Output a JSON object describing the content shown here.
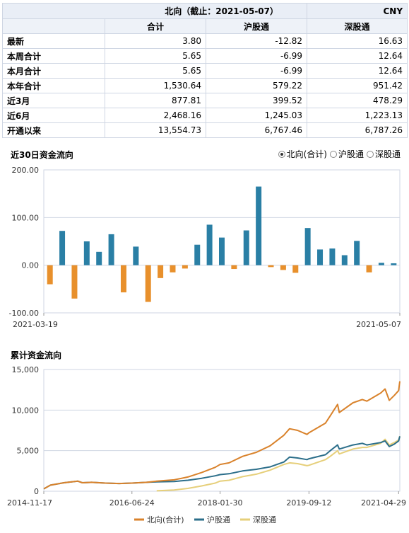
{
  "table": {
    "title": "北向（截止：2021-05-07）",
    "currency": "CNY",
    "columns": [
      "",
      "合计",
      "沪股通",
      "深股通"
    ],
    "rows": [
      {
        "label": "最新",
        "total": "3.80",
        "sh": "-12.82",
        "sz": "16.63"
      },
      {
        "label": "本周合计",
        "total": "5.65",
        "sh": "-6.99",
        "sz": "12.64"
      },
      {
        "label": "本月合计",
        "total": "5.65",
        "sh": "-6.99",
        "sz": "12.64"
      },
      {
        "label": "本年合计",
        "total": "1,530.64",
        "sh": "579.22",
        "sz": "951.42"
      },
      {
        "label": "近3月",
        "total": "877.81",
        "sh": "399.52",
        "sz": "478.29"
      },
      {
        "label": "近6月",
        "total": "2,468.16",
        "sh": "1,245.03",
        "sz": "1,223.13"
      },
      {
        "label": "开通以来",
        "total": "13,554.73",
        "sh": "6,767.46",
        "sz": "6,787.26"
      }
    ]
  },
  "radio": {
    "options": [
      "北向(合计)",
      "沪股通",
      "深股通"
    ],
    "selected": 0
  },
  "colors": {
    "positive": "#2a7fa5",
    "negative": "#e8902c",
    "total_line": "#d9822b",
    "sh_line": "#2b6e8a",
    "sz_line": "#e6cf7a",
    "grid": "#cfd6e3"
  },
  "chart_data": [
    {
      "type": "bar",
      "title": "近30日资金流向",
      "ylim": [
        -100,
        200
      ],
      "yticks": [
        "200.00",
        "100.00",
        "0.00",
        "-100.00"
      ],
      "ytick_values": [
        200,
        100,
        0,
        -100
      ],
      "xtick_labels": [
        "2021-03-19",
        "2021-05-07"
      ],
      "values": [
        -40,
        72,
        -70,
        50,
        28,
        65,
        -57,
        39,
        -77,
        -27,
        -15,
        -7,
        43,
        85,
        58,
        -8,
        73,
        165,
        -4,
        -10,
        -16,
        78,
        33,
        35,
        21,
        51,
        -15,
        5,
        4
      ],
      "grid": true
    },
    {
      "type": "line",
      "title": "累计资金流向",
      "ylim": [
        0,
        15000
      ],
      "yticks": [
        "15,000",
        "10,000",
        "5,000",
        "0"
      ],
      "ytick_values": [
        15000,
        10000,
        5000,
        0
      ],
      "xtick_labels": [
        "2014-11-17",
        "2016-06-24",
        "2018-01-30",
        "2019-09-12",
        "2021-04-29"
      ],
      "series": [
        {
          "name": "北向(合计)",
          "x": [
            "2014-11-17",
            "2014-12-31",
            "2015-03-31",
            "2015-06-30",
            "2015-07-31",
            "2015-09-30",
            "2015-12-31",
            "2016-03-31",
            "2016-06-24",
            "2016-09-30",
            "2016-12-05",
            "2017-03-31",
            "2017-06-30",
            "2017-09-30",
            "2017-12-29",
            "2018-01-30",
            "2018-03-31",
            "2018-06-29",
            "2018-09-28",
            "2018-12-28",
            "2019-03-29",
            "2019-05-06",
            "2019-06-28",
            "2019-08-30",
            "2019-09-12",
            "2019-12-31",
            "2020-01-31",
            "2020-03-20",
            "2020-03-31",
            "2020-06-30",
            "2020-08-31",
            "2020-09-30",
            "2020-12-31",
            "2021-01-29",
            "2021-02-26",
            "2021-03-31",
            "2021-04-29",
            "2021-05-07"
          ],
          "y": [
            300,
            750,
            1050,
            1250,
            1050,
            1100,
            1000,
            950,
            1000,
            1100,
            1250,
            1400,
            1750,
            2300,
            2950,
            3300,
            3500,
            4300,
            4800,
            5600,
            6900,
            7700,
            7500,
            7000,
            7200,
            8400,
            9300,
            10700,
            9700,
            10900,
            11300,
            11100,
            12100,
            12600,
            11200,
            11800,
            12400,
            13554
          ]
        },
        {
          "name": "沪股通",
          "x": [
            "2014-11-17",
            "2014-12-31",
            "2015-03-31",
            "2015-06-30",
            "2015-07-31",
            "2015-09-30",
            "2015-12-31",
            "2016-03-31",
            "2016-06-24",
            "2016-09-30",
            "2016-12-05",
            "2017-03-31",
            "2017-06-30",
            "2017-09-30",
            "2017-12-29",
            "2018-01-30",
            "2018-03-31",
            "2018-06-29",
            "2018-09-28",
            "2018-12-28",
            "2019-03-29",
            "2019-05-06",
            "2019-06-28",
            "2019-08-30",
            "2019-09-12",
            "2019-12-31",
            "2020-01-31",
            "2020-03-20",
            "2020-03-31",
            "2020-06-30",
            "2020-08-31",
            "2020-09-30",
            "2020-12-31",
            "2021-01-29",
            "2021-02-26",
            "2021-03-31",
            "2021-04-29",
            "2021-05-07"
          ],
          "y": [
            300,
            750,
            1050,
            1250,
            1050,
            1100,
            1000,
            950,
            1000,
            1100,
            1150,
            1200,
            1350,
            1600,
            1900,
            2050,
            2150,
            2500,
            2700,
            3000,
            3600,
            4200,
            4100,
            3900,
            4000,
            4500,
            5000,
            5700,
            5200,
            5700,
            5900,
            5700,
            6000,
            6200,
            5500,
            5800,
            6200,
            6767
          ]
        },
        {
          "name": "深股通",
          "x": [
            "2016-12-05",
            "2017-03-31",
            "2017-06-30",
            "2017-09-30",
            "2017-12-29",
            "2018-01-30",
            "2018-03-31",
            "2018-06-29",
            "2018-09-28",
            "2018-12-28",
            "2019-03-29",
            "2019-05-06",
            "2019-06-28",
            "2019-08-30",
            "2019-09-12",
            "2019-12-31",
            "2020-01-31",
            "2020-03-20",
            "2020-03-31",
            "2020-06-30",
            "2020-08-31",
            "2020-09-30",
            "2020-12-31",
            "2021-01-29",
            "2021-02-26",
            "2021-03-31",
            "2021-04-29",
            "2021-05-07"
          ],
          "y": [
            50,
            150,
            350,
            650,
            1000,
            1250,
            1350,
            1800,
            2100,
            2600,
            3300,
            3500,
            3400,
            3150,
            3200,
            3900,
            4300,
            5000,
            4600,
            5200,
            5400,
            5400,
            5900,
            6400,
            5700,
            6000,
            6300,
            6787
          ]
        }
      ],
      "legend": "bottom",
      "grid": true
    }
  ]
}
